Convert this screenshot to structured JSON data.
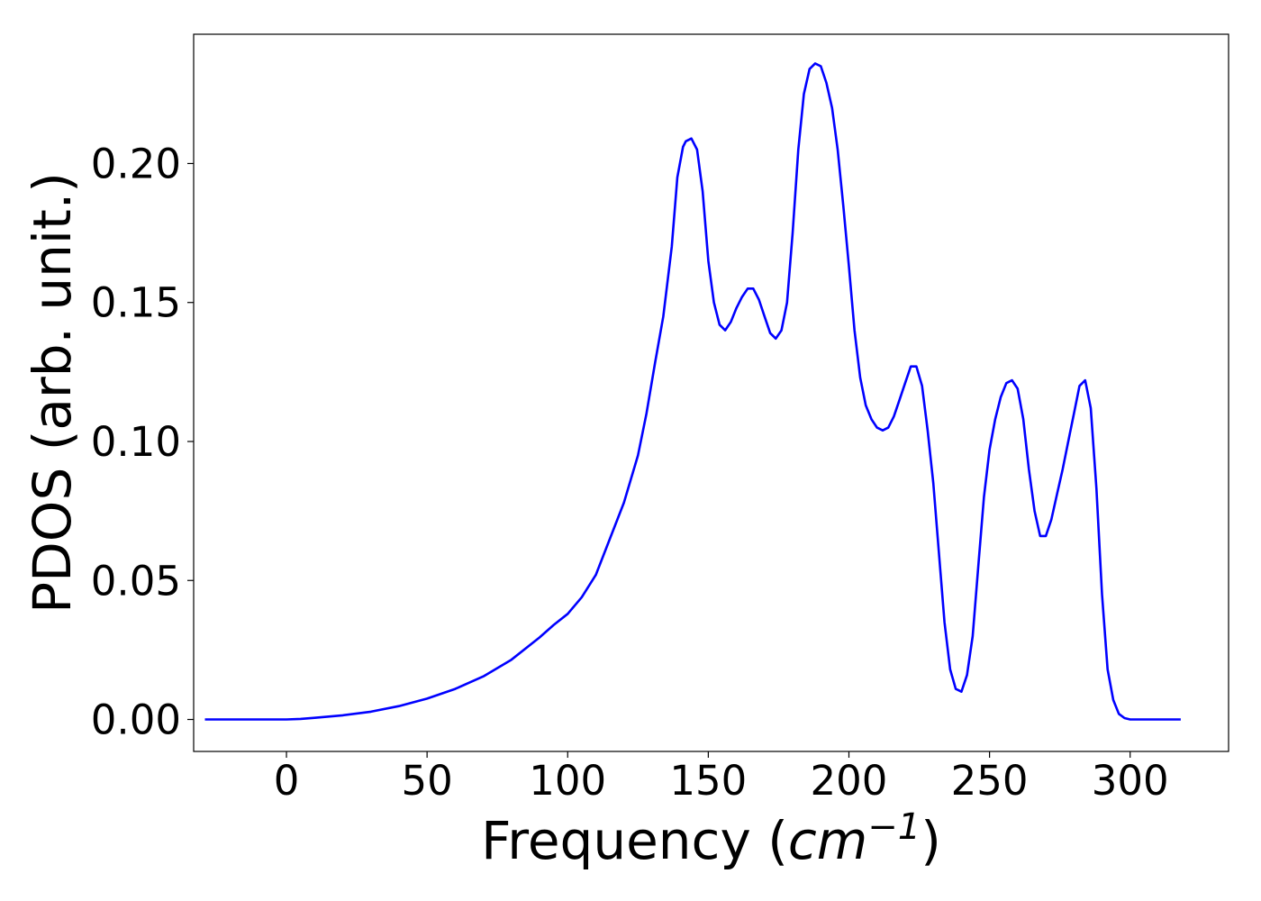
{
  "chart_data": {
    "type": "line",
    "title": "",
    "xlabel": "Frequency",
    "xlabel_paren_open": "(",
    "xlabel_unit": "cm",
    "xlabel_unit_exp": "−1",
    "xlabel_paren_close": ")",
    "ylabel": "PDOS (arb. unit.)",
    "xlim": [
      -33,
      335
    ],
    "ylim": [
      -0.0115,
      0.2465
    ],
    "xticks": [
      0,
      50,
      100,
      150,
      200,
      250,
      300
    ],
    "xtick_labels": [
      "0",
      "50",
      "100",
      "150",
      "200",
      "250",
      "300"
    ],
    "yticks": [
      0.0,
      0.05,
      0.1,
      0.15,
      0.2
    ],
    "ytick_labels": [
      "0.00",
      "0.05",
      "0.10",
      "0.15",
      "0.20"
    ],
    "grid": false,
    "legend": "none",
    "series": [
      {
        "color": "#0000ff",
        "x": [
          -29,
          -20,
          -10,
          0,
          5,
          10,
          20,
          30,
          40,
          50,
          60,
          70,
          80,
          90,
          95,
          100,
          105,
          110,
          115,
          120,
          125,
          128,
          131,
          134,
          137,
          139,
          141,
          142,
          144,
          146,
          148,
          150,
          152,
          154,
          156,
          158,
          160,
          162,
          164,
          166,
          168,
          170,
          172,
          174,
          176,
          178,
          180,
          182,
          184,
          186,
          188,
          190,
          192,
          194,
          196,
          198,
          200,
          202,
          204,
          206,
          208,
          210,
          212,
          214,
          216,
          218,
          220,
          222,
          224,
          226,
          228,
          230,
          232,
          234,
          236,
          238,
          240,
          242,
          244,
          246,
          248,
          250,
          252,
          254,
          256,
          258,
          260,
          262,
          264,
          266,
          268,
          270,
          272,
          274,
          276,
          278,
          280,
          282,
          284,
          286,
          288,
          290,
          292,
          294,
          296,
          298,
          300,
          310,
          318
        ],
        "y": [
          0.0,
          0.0,
          0.0,
          0.0,
          0.0002,
          0.0006,
          0.0015,
          0.0028,
          0.0048,
          0.0075,
          0.011,
          0.0155,
          0.0215,
          0.0295,
          0.034,
          0.038,
          0.044,
          0.052,
          0.065,
          0.078,
          0.095,
          0.11,
          0.128,
          0.145,
          0.17,
          0.195,
          0.206,
          0.208,
          0.209,
          0.205,
          0.19,
          0.165,
          0.15,
          0.142,
          0.14,
          0.143,
          0.148,
          0.152,
          0.155,
          0.155,
          0.151,
          0.145,
          0.139,
          0.137,
          0.14,
          0.15,
          0.175,
          0.205,
          0.225,
          0.234,
          0.236,
          0.235,
          0.229,
          0.22,
          0.205,
          0.185,
          0.163,
          0.14,
          0.123,
          0.113,
          0.108,
          0.105,
          0.104,
          0.105,
          0.109,
          0.115,
          0.121,
          0.127,
          0.127,
          0.12,
          0.104,
          0.085,
          0.06,
          0.035,
          0.018,
          0.011,
          0.01,
          0.016,
          0.03,
          0.055,
          0.08,
          0.097,
          0.108,
          0.116,
          0.121,
          0.122,
          0.119,
          0.108,
          0.09,
          0.075,
          0.066,
          0.066,
          0.072,
          0.081,
          0.09,
          0.1,
          0.11,
          0.12,
          0.122,
          0.112,
          0.083,
          0.045,
          0.018,
          0.007,
          0.002,
          0.0005,
          0.0,
          0.0,
          0.0
        ]
      }
    ]
  }
}
